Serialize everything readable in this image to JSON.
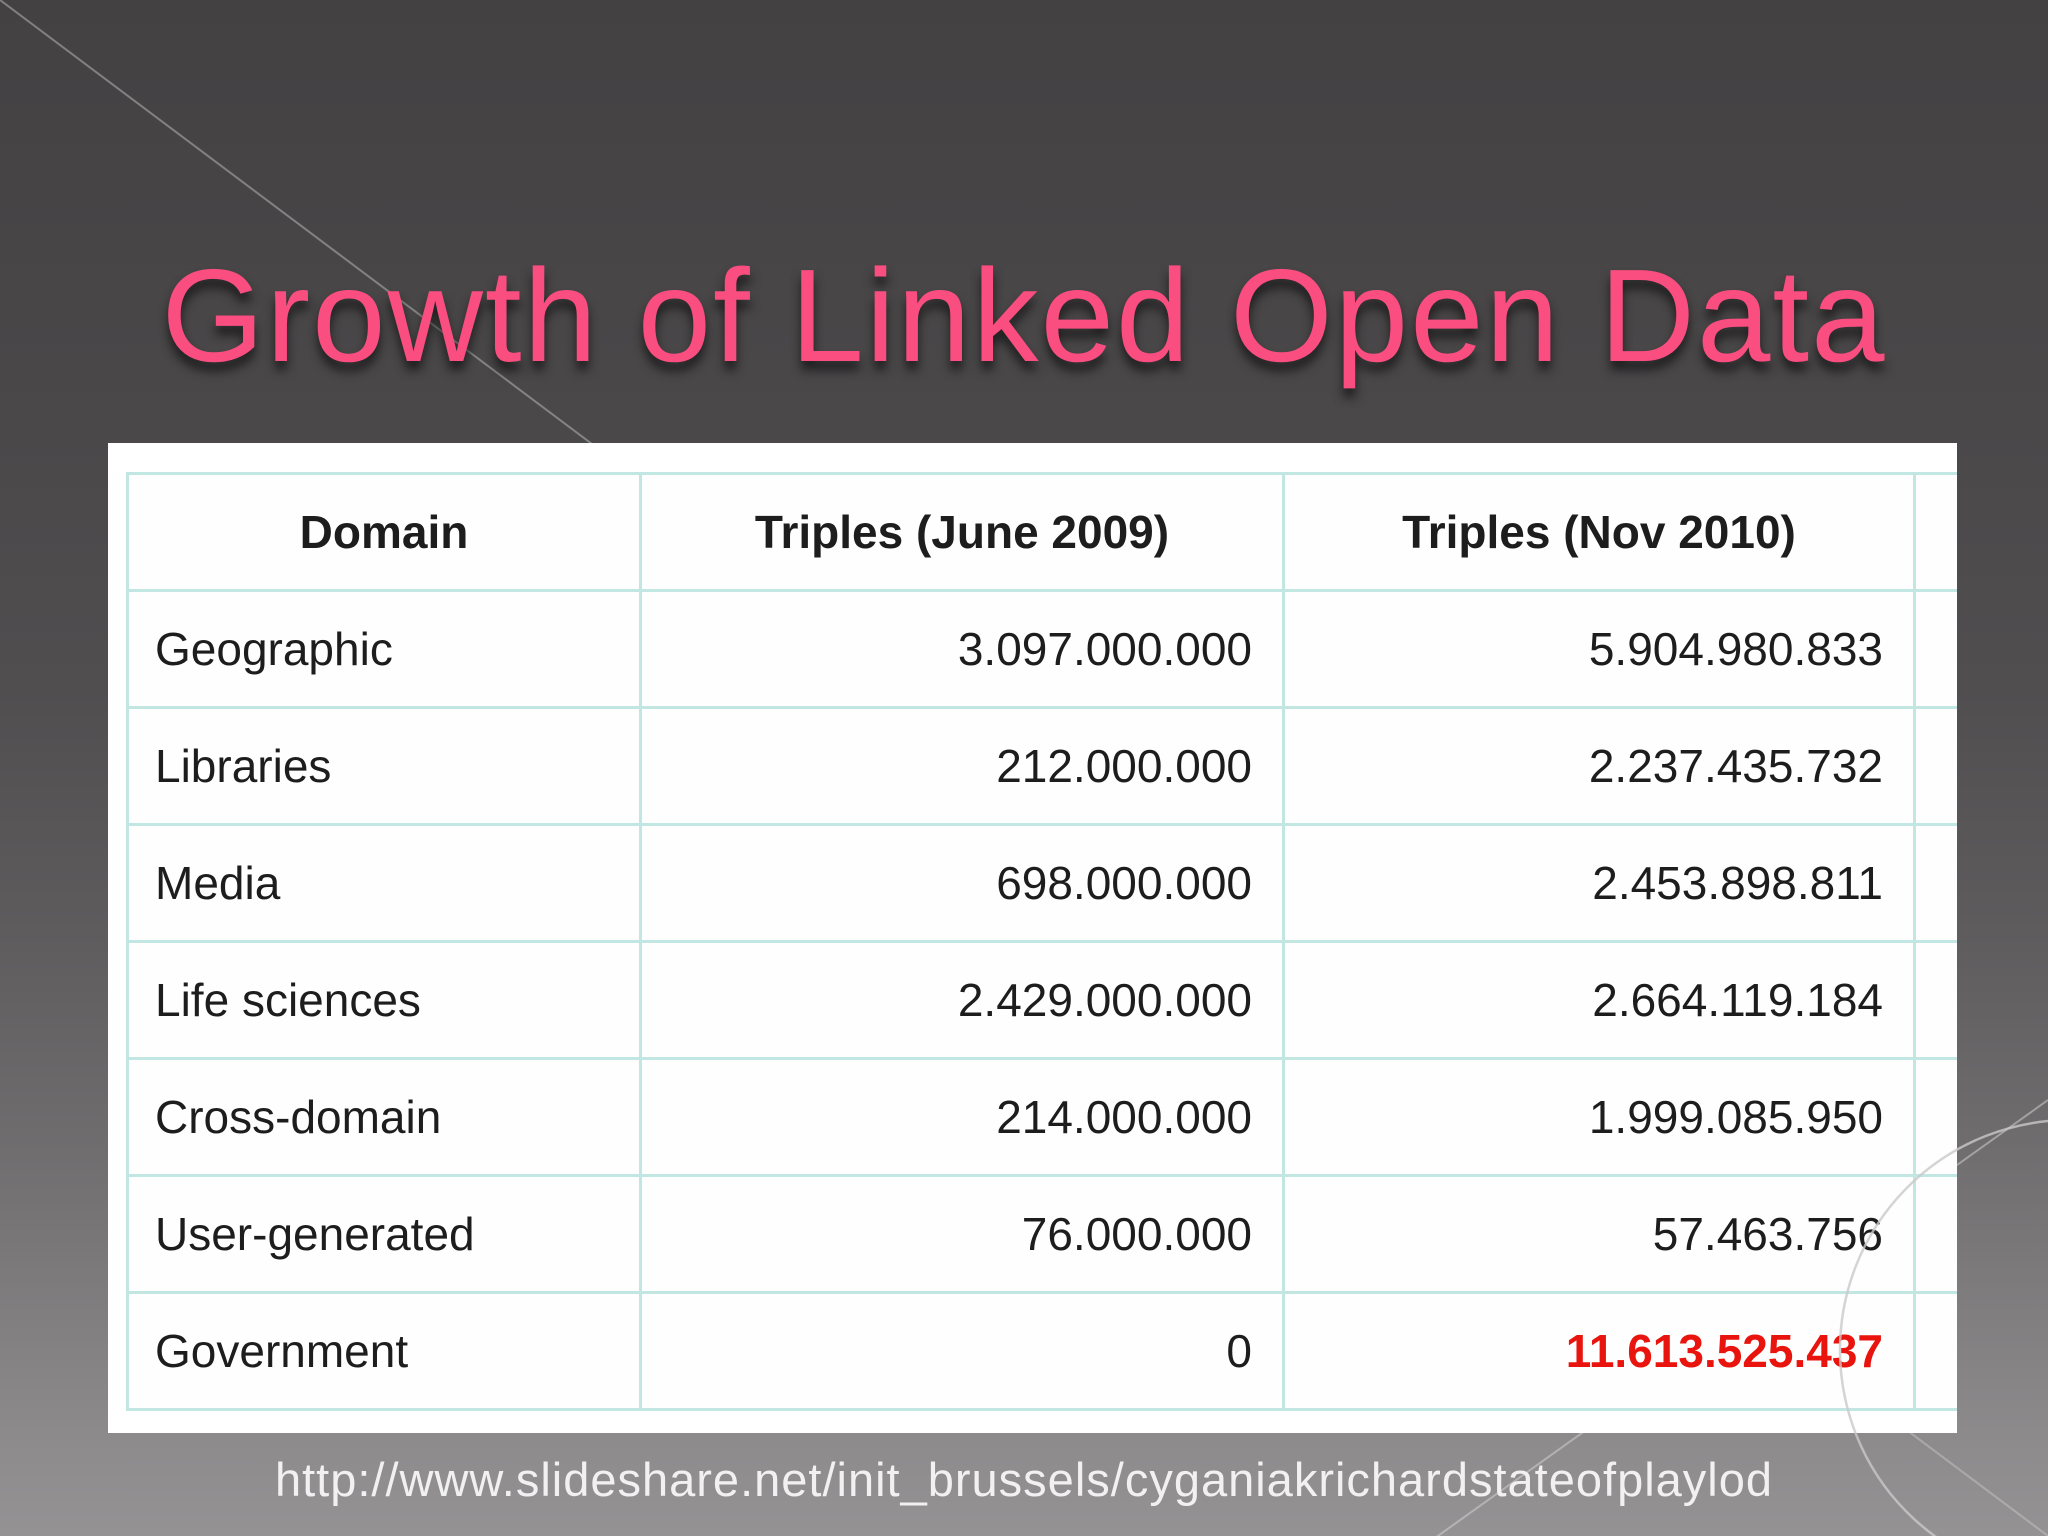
{
  "title": "Growth of Linked Open Data",
  "footer_url": "http://www.slideshare.net/init_brussels/cyganiakrichardstateofplaylod",
  "colors": {
    "title_pink": "#fa4d80",
    "highlight_red": "#e8140d",
    "table_border_teal": "#c2e7e3",
    "background_top": "#434142",
    "background_bottom": "#949293",
    "footer_text": "#f2f1f1"
  },
  "table": {
    "columns": [
      "Domain",
      "Triples (June 2009)",
      "Triples (Nov 2010)",
      ""
    ],
    "rows": [
      {
        "domain": "Geographic",
        "june_2009": "3.097.000.000",
        "nov_2010": "5.904.980.833",
        "nov_highlight": false
      },
      {
        "domain": "Libraries",
        "june_2009": "212.000.000",
        "nov_2010": "2.237.435.732",
        "nov_highlight": false
      },
      {
        "domain": "Media",
        "june_2009": "698.000.000",
        "nov_2010": "2.453.898.811",
        "nov_highlight": false
      },
      {
        "domain": "Life sciences",
        "june_2009": "2.429.000.000",
        "nov_2010": "2.664.119.184",
        "nov_highlight": false
      },
      {
        "domain": "Cross-domain",
        "june_2009": "214.000.000",
        "nov_2010": "1.999.085.950",
        "nov_highlight": false
      },
      {
        "domain": "User-generated",
        "june_2009": "76.000.000",
        "nov_2010": "57.463.756",
        "nov_highlight": false
      },
      {
        "domain": "Government",
        "june_2009": "0",
        "nov_2010": "11.613.525.437",
        "nov_highlight": true
      }
    ]
  }
}
